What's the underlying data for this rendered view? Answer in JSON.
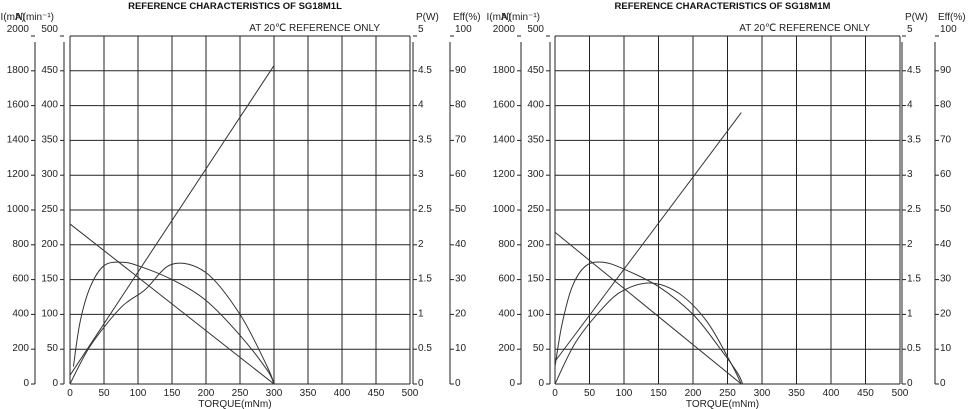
{
  "chart_data": [
    {
      "type": "line",
      "title": "REFERENCE CHARACTERISTICS  OF    SG18M1L",
      "note": "AT 20℃ REFERENCE ONLY",
      "xlabel": "TORQUE(mNm)",
      "xticks": [
        "0",
        "50",
        "100",
        "150",
        "200",
        "250",
        "300",
        "350",
        "400",
        "450",
        "500"
      ],
      "xlim": [
        0,
        500
      ],
      "axes": {
        "current": {
          "label": "I(mA)",
          "ticks": [
            "0",
            "200",
            "400",
            "600",
            "800",
            "1000",
            "1200",
            "1400",
            "1600",
            "1800",
            "2000"
          ],
          "lim": [
            0,
            2000
          ]
        },
        "speed": {
          "label": "N(min⁻¹)",
          "ticks": [
            "0",
            "50",
            "100",
            "150",
            "200",
            "250",
            "300",
            "350",
            "400",
            "450",
            "500"
          ],
          "lim": [
            0,
            500
          ]
        },
        "power": {
          "label": "P(W)",
          "ticks": [
            "0",
            "0.5",
            "1",
            "1.5",
            "2",
            "2.5",
            "3",
            "3.5",
            "4",
            "4.5",
            "5"
          ],
          "lim": [
            0,
            5
          ]
        },
        "efficiency": {
          "label": "Eff(%)",
          "ticks": [
            "0",
            "10",
            "20",
            "30",
            "40",
            "50",
            "60",
            "70",
            "80",
            "90",
            "100"
          ],
          "lim": [
            0,
            100
          ]
        }
      },
      "grid": true,
      "series": [
        {
          "axis": "current",
          "x": [
            0,
            300
          ],
          "y": [
            50,
            1830
          ]
        },
        {
          "axis": "speed",
          "x": [
            0,
            300
          ],
          "y": [
            230,
            0
          ]
        },
        {
          "axis": "efficiency",
          "x": [
            5,
            15,
            30,
            50,
            75,
            100,
            150,
            200,
            250,
            290,
            300
          ],
          "y": [
            5,
            18,
            28,
            34,
            35,
            34,
            30,
            24,
            14,
            4,
            0
          ]
        },
        {
          "axis": "power",
          "x": [
            0,
            30,
            75,
            110,
            150,
            200,
            250,
            290,
            300
          ],
          "y": [
            0,
            0.55,
            1.1,
            1.35,
            1.72,
            1.6,
            1.0,
            0.25,
            0
          ]
        }
      ]
    },
    {
      "type": "line",
      "title": "REFERENCE CHARACTERISTICS  OF    SG18M1M",
      "note": "AT 20℃ REFERENCE ONLY",
      "xlabel": "TORQUE(mNm)",
      "xticks": [
        "0",
        "50",
        "100",
        "150",
        "200",
        "250",
        "300",
        "350",
        "400",
        "450",
        "500"
      ],
      "xlim": [
        0,
        500
      ],
      "axes": {
        "current": {
          "label": "I(mA)",
          "ticks": [
            "0",
            "200",
            "400",
            "600",
            "800",
            "1000",
            "1200",
            "1400",
            "1600",
            "1800",
            "2000"
          ],
          "lim": [
            0,
            2000
          ]
        },
        "speed": {
          "label": "N(min⁻¹)",
          "ticks": [
            "0",
            "50",
            "100",
            "150",
            "200",
            "250",
            "300",
            "350",
            "400",
            "450",
            "500"
          ],
          "lim": [
            0,
            500
          ]
        },
        "power": {
          "label": "P(W)",
          "ticks": [
            "0",
            "0.5",
            "1",
            "1.5",
            "2",
            "2.5",
            "3",
            "3.5",
            "4",
            "4.5",
            "5"
          ],
          "lim": [
            0,
            5
          ]
        },
        "efficiency": {
          "label": "Eff(%)",
          "ticks": [
            "0",
            "10",
            "20",
            "30",
            "40",
            "50",
            "60",
            "70",
            "80",
            "90",
            "100"
          ],
          "lim": [
            0,
            100
          ]
        }
      },
      "grid": true,
      "series": [
        {
          "axis": "current",
          "x": [
            0,
            270
          ],
          "y": [
            130,
            1560
          ]
        },
        {
          "axis": "speed",
          "x": [
            0,
            270
          ],
          "y": [
            218,
            0
          ]
        },
        {
          "axis": "efficiency",
          "x": [
            0,
            10,
            25,
            45,
            70,
            100,
            150,
            200,
            240,
            265,
            272
          ],
          "y": [
            5,
            17,
            28,
            34,
            35,
            33,
            28,
            20,
            10,
            3,
            0
          ]
        },
        {
          "axis": "power",
          "x": [
            0,
            30,
            70,
            100,
            140,
            180,
            220,
            255,
            270
          ],
          "y": [
            0,
            0.6,
            1.1,
            1.35,
            1.45,
            1.3,
            0.9,
            0.3,
            0
          ]
        }
      ]
    }
  ]
}
